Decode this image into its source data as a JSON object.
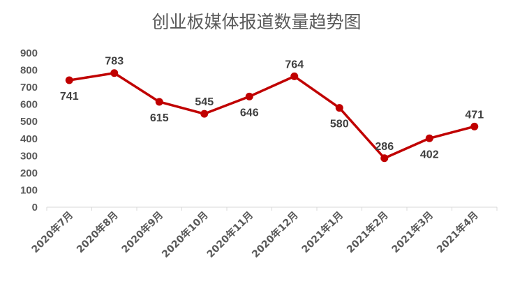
{
  "chart_data": {
    "type": "line",
    "title": "创业板媒体报道数量趋势图",
    "categories": [
      "2020年7月",
      "2020年8月",
      "2020年9月",
      "2020年10月",
      "2020年11月",
      "2020年12月",
      "2021年1月",
      "2021年2月",
      "2021年3月",
      "2021年4月"
    ],
    "series": [
      {
        "values": [
          741,
          783,
          615,
          545,
          646,
          764,
          580,
          286,
          402,
          471
        ]
      }
    ],
    "label_position": [
      "below",
      "above",
      "below",
      "above",
      "below",
      "above",
      "below",
      "above",
      "below",
      "above"
    ],
    "yticks": [
      "0",
      "100",
      "200",
      "300",
      "400",
      "500",
      "600",
      "700",
      "800",
      "900"
    ],
    "ylim": [
      0,
      900
    ],
    "grid": false,
    "legend": "none",
    "color": "#C00000"
  }
}
